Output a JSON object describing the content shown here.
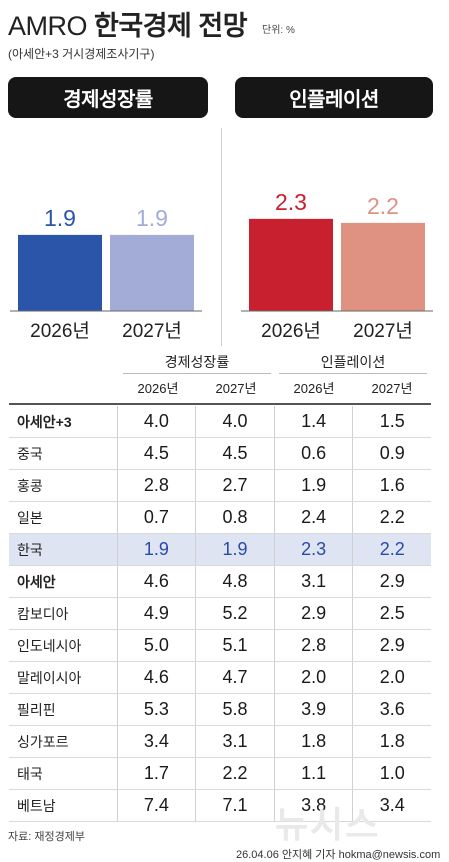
{
  "header": {
    "title_prefix": "AMRO",
    "title_main": "한국경제 전망",
    "unit": "단위: %",
    "subtitle": "(아세안+3 거시경제조사기구)"
  },
  "panels": {
    "growth_label": "경제성장률",
    "inflation_label": "인플레이션"
  },
  "colors": {
    "growth_2026": "#2b55a8",
    "growth_2027": "#a2acd7",
    "infl_2026": "#c8202f",
    "infl_2027": "#df9281",
    "highlight_row": "#dfe4f3"
  },
  "chart_data": [
    {
      "type": "bar",
      "title": "경제성장률",
      "categories": [
        "2026년",
        "2027년"
      ],
      "values": [
        1.9,
        1.9
      ],
      "value_labels": [
        "1.9",
        "1.9"
      ]
    },
    {
      "type": "bar",
      "title": "인플레이션",
      "categories": [
        "2026년",
        "2027년"
      ],
      "values": [
        2.3,
        2.2
      ],
      "value_labels": [
        "2.3",
        "2.2"
      ]
    },
    {
      "type": "table",
      "group_headers": [
        "경제성장률",
        "인플레이션"
      ],
      "year_headers": [
        "2026년",
        "2027년",
        "2026년",
        "2027년"
      ],
      "rows": [
        {
          "name": "아세안+3",
          "bold": true,
          "values": [
            "4.0",
            "4.0",
            "1.4",
            "1.5"
          ]
        },
        {
          "name": "중국",
          "values": [
            "4.5",
            "4.5",
            "0.6",
            "0.9"
          ]
        },
        {
          "name": "홍콩",
          "values": [
            "2.8",
            "2.7",
            "1.9",
            "1.6"
          ]
        },
        {
          "name": "일본",
          "values": [
            "0.7",
            "0.8",
            "2.4",
            "2.2"
          ]
        },
        {
          "name": "한국",
          "highlight": true,
          "values": [
            "1.9",
            "1.9",
            "2.3",
            "2.2"
          ]
        },
        {
          "name": "아세안",
          "bold": true,
          "values": [
            "4.6",
            "4.8",
            "3.1",
            "2.9"
          ]
        },
        {
          "name": "캄보디아",
          "values": [
            "4.9",
            "5.2",
            "2.9",
            "2.5"
          ]
        },
        {
          "name": "인도네시아",
          "values": [
            "5.0",
            "5.1",
            "2.8",
            "2.9"
          ]
        },
        {
          "name": "말레이시아",
          "values": [
            "4.6",
            "4.7",
            "2.0",
            "2.0"
          ]
        },
        {
          "name": "필리핀",
          "values": [
            "5.3",
            "5.8",
            "3.9",
            "3.6"
          ]
        },
        {
          "name": "싱가포르",
          "values": [
            "3.4",
            "3.1",
            "1.8",
            "1.8"
          ]
        },
        {
          "name": "태국",
          "values": [
            "1.7",
            "2.2",
            "1.1",
            "1.0"
          ]
        },
        {
          "name": "베트남",
          "values": [
            "7.4",
            "7.1",
            "3.8",
            "3.4"
          ]
        }
      ]
    }
  ],
  "footer": {
    "source": "자료: 재정경제부",
    "credit": "26.04.06 안지혜 기자 hokma@newsis.com",
    "watermark": "뉴시스"
  }
}
